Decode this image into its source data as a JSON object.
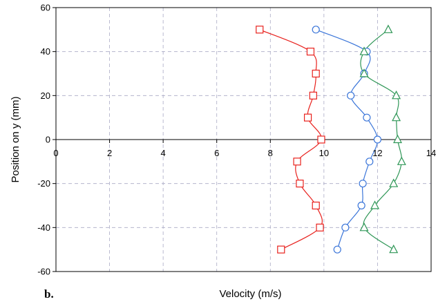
{
  "chart_data": {
    "type": "scatter",
    "xlabel": "Velocity (m/s)",
    "ylabel": "Position on y (mm)",
    "panel_label": "b.",
    "xlim": [
      0,
      14
    ],
    "ylim": [
      -60,
      60
    ],
    "xticks": [
      0,
      2,
      4,
      6,
      8,
      10,
      12,
      14
    ],
    "yticks": [
      -60,
      -40,
      -20,
      0,
      20,
      40,
      60
    ],
    "grid": true,
    "series": [
      {
        "marker": "square",
        "color": "#e8201c",
        "points": [
          {
            "x": 7.6,
            "y": 50
          },
          {
            "x": 9.5,
            "y": 40
          },
          {
            "x": 9.7,
            "y": 30
          },
          {
            "x": 9.6,
            "y": 20
          },
          {
            "x": 9.4,
            "y": 10
          },
          {
            "x": 9.9,
            "y": 0
          },
          {
            "x": 9.0,
            "y": -10
          },
          {
            "x": 9.1,
            "y": -20
          },
          {
            "x": 9.7,
            "y": -30
          },
          {
            "x": 9.85,
            "y": -40
          },
          {
            "x": 8.4,
            "y": -50
          }
        ]
      },
      {
        "marker": "circle",
        "color": "#3a75d9",
        "points": [
          {
            "x": 9.7,
            "y": 50
          },
          {
            "x": 11.6,
            "y": 40
          },
          {
            "x": 11.5,
            "y": 30
          },
          {
            "x": 11.0,
            "y": 20
          },
          {
            "x": 11.6,
            "y": 10
          },
          {
            "x": 12.0,
            "y": 0
          },
          {
            "x": 11.7,
            "y": -10
          },
          {
            "x": 11.45,
            "y": -20
          },
          {
            "x": 11.4,
            "y": -30
          },
          {
            "x": 10.8,
            "y": -40
          },
          {
            "x": 10.5,
            "y": -50
          }
        ]
      },
      {
        "marker": "triangle",
        "color": "#2e9656",
        "points": [
          {
            "x": 12.4,
            "y": 50
          },
          {
            "x": 11.5,
            "y": 40
          },
          {
            "x": 11.5,
            "y": 30
          },
          {
            "x": 12.7,
            "y": 20
          },
          {
            "x": 12.7,
            "y": 10
          },
          {
            "x": 12.75,
            "y": 0
          },
          {
            "x": 12.9,
            "y": -10
          },
          {
            "x": 12.6,
            "y": -20
          },
          {
            "x": 11.9,
            "y": -30
          },
          {
            "x": 11.5,
            "y": -40
          },
          {
            "x": 12.6,
            "y": -50
          }
        ]
      }
    ]
  }
}
